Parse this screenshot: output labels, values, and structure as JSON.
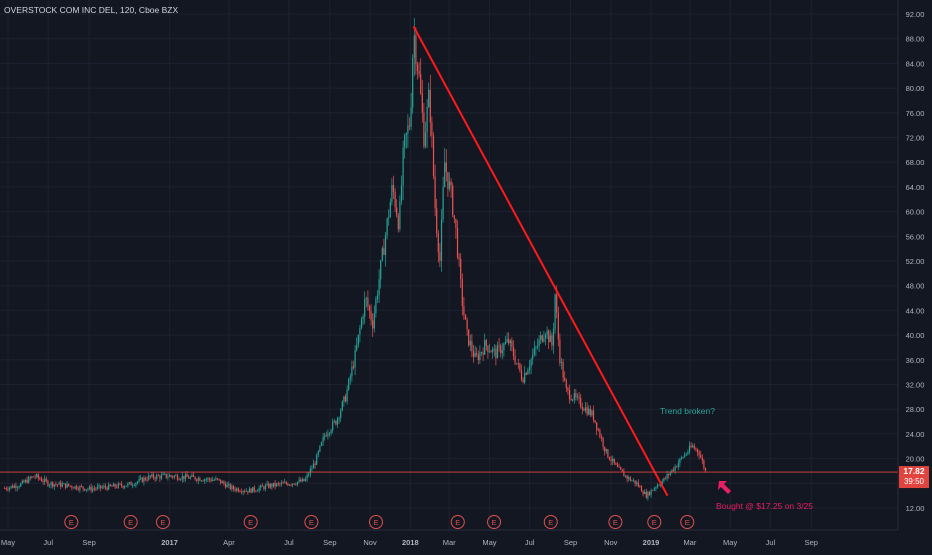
{
  "header": {
    "symbol_line": "OVERSTOCK COM INC DEL, 120, Cboe BZX"
  },
  "colors": {
    "background": "#131722",
    "grid": "#1e2230",
    "up_candle": "#26a69a",
    "down_candle": "#ef5350",
    "axis_text": "#b2b5be",
    "trendline": "#ff1a1a",
    "price_line": "#e0443e",
    "price_tag": "#e0443e",
    "earnings_marker": "#e05050",
    "annotation_teal": "#26a69a",
    "annotation_pink": "#e91e63"
  },
  "annotations": {
    "trend_note": "Trend broken?",
    "bought_note": "Bought @ $17.25 on 3/25",
    "arrow_icon": "arrow-up-left-icon"
  },
  "earnings": {
    "label": "E",
    "dates": [
      "2016-08-05",
      "2016-11-03",
      "2016-12-22",
      "2017-05-04",
      "2017-08-04",
      "2017-11-10",
      "2018-03-14",
      "2018-05-08",
      "2018-08-02",
      "2018-11-08",
      "2019-01-06",
      "2019-02-25"
    ]
  },
  "chart_data": {
    "type": "candlestick",
    "title": "OVERSTOCK COM INC DEL, 120, Cboe BZX",
    "interval": "120",
    "exchange": "Cboe BZX",
    "x_axis": {
      "ticks": [
        {
          "label": "May",
          "date": "2016-05-01",
          "bold": false
        },
        {
          "label": "Jul",
          "date": "2016-07-01",
          "bold": false
        },
        {
          "label": "Sep",
          "date": "2016-09-01",
          "bold": false
        },
        {
          "label": "2017",
          "date": "2017-01-01",
          "bold": true
        },
        {
          "label": "Apr",
          "date": "2017-04-01",
          "bold": false
        },
        {
          "label": "Jul",
          "date": "2017-07-01",
          "bold": false
        },
        {
          "label": "Sep",
          "date": "2017-09-01",
          "bold": false
        },
        {
          "label": "Nov",
          "date": "2017-11-01",
          "bold": false
        },
        {
          "label": "2018",
          "date": "2018-01-01",
          "bold": true
        },
        {
          "label": "Mar",
          "date": "2018-03-01",
          "bold": false
        },
        {
          "label": "May",
          "date": "2018-05-01",
          "bold": false
        },
        {
          "label": "Jul",
          "date": "2018-07-01",
          "bold": false
        },
        {
          "label": "Sep",
          "date": "2018-09-01",
          "bold": false
        },
        {
          "label": "Nov",
          "date": "2018-11-01",
          "bold": false
        },
        {
          "label": "2019",
          "date": "2019-01-01",
          "bold": true
        },
        {
          "label": "Mar",
          "date": "2019-03-01",
          "bold": false
        },
        {
          "label": "May",
          "date": "2019-05-01",
          "bold": false
        },
        {
          "label": "Jul",
          "date": "2019-07-01",
          "bold": false
        },
        {
          "label": "Sep",
          "date": "2019-09-01",
          "bold": false
        }
      ]
    },
    "y_axis": {
      "ylim": [
        8,
        92
      ],
      "ticks": [
        "92.00",
        "88.00",
        "84.00",
        "80.00",
        "76.00",
        "72.00",
        "68.00",
        "64.00",
        "60.00",
        "56.00",
        "52.00",
        "48.00",
        "44.00",
        "40.00",
        "36.00",
        "32.00",
        "28.00",
        "24.00",
        "20.00",
        "16.00",
        "12.00"
      ]
    },
    "price_path": [
      {
        "date": "2016-04-26",
        "price": 15.2
      },
      {
        "date": "2016-05-20",
        "price": 15.8
      },
      {
        "date": "2016-06-10",
        "price": 17.2
      },
      {
        "date": "2016-07-01",
        "price": 16.0
      },
      {
        "date": "2016-08-01",
        "price": 15.6
      },
      {
        "date": "2016-09-01",
        "price": 15.1
      },
      {
        "date": "2016-10-01",
        "price": 15.4
      },
      {
        "date": "2016-11-01",
        "price": 15.8
      },
      {
        "date": "2016-12-01",
        "price": 17.0
      },
      {
        "date": "2017-01-01",
        "price": 17.2
      },
      {
        "date": "2017-02-15",
        "price": 16.8
      },
      {
        "date": "2017-03-15",
        "price": 16.5
      },
      {
        "date": "2017-04-05",
        "price": 15.2
      },
      {
        "date": "2017-05-01",
        "price": 14.8
      },
      {
        "date": "2017-06-01",
        "price": 15.6
      },
      {
        "date": "2017-07-01",
        "price": 16.0
      },
      {
        "date": "2017-07-25",
        "price": 16.4
      },
      {
        "date": "2017-08-10",
        "price": 19.5
      },
      {
        "date": "2017-08-25",
        "price": 24.0
      },
      {
        "date": "2017-09-10",
        "price": 26.0
      },
      {
        "date": "2017-09-25",
        "price": 30.0
      },
      {
        "date": "2017-10-10",
        "price": 37.0
      },
      {
        "date": "2017-10-25",
        "price": 46.0
      },
      {
        "date": "2017-11-05",
        "price": 42.0
      },
      {
        "date": "2017-11-20",
        "price": 53.0
      },
      {
        "date": "2017-12-05",
        "price": 64.0
      },
      {
        "date": "2017-12-15",
        "price": 58.0
      },
      {
        "date": "2017-12-22",
        "price": 70.0
      },
      {
        "date": "2018-01-01",
        "price": 75.0
      },
      {
        "date": "2018-01-06",
        "price": 89.5
      },
      {
        "date": "2018-01-14",
        "price": 82.0
      },
      {
        "date": "2018-01-22",
        "price": 72.0
      },
      {
        "date": "2018-01-30",
        "price": 79.0
      },
      {
        "date": "2018-02-08",
        "price": 60.0
      },
      {
        "date": "2018-02-15",
        "price": 52.0
      },
      {
        "date": "2018-02-22",
        "price": 68.0
      },
      {
        "date": "2018-03-05",
        "price": 62.0
      },
      {
        "date": "2018-03-12",
        "price": 56.0
      },
      {
        "date": "2018-03-20",
        "price": 46.0
      },
      {
        "date": "2018-03-28",
        "price": 40.0
      },
      {
        "date": "2018-04-10",
        "price": 36.0
      },
      {
        "date": "2018-04-25",
        "price": 38.5
      },
      {
        "date": "2018-05-10",
        "price": 37.0
      },
      {
        "date": "2018-05-30",
        "price": 39.0
      },
      {
        "date": "2018-06-20",
        "price": 33.0
      },
      {
        "date": "2018-07-05",
        "price": 36.5
      },
      {
        "date": "2018-07-25",
        "price": 41.0
      },
      {
        "date": "2018-08-05",
        "price": 38.0
      },
      {
        "date": "2018-08-08",
        "price": 47.5
      },
      {
        "date": "2018-08-15",
        "price": 37.0
      },
      {
        "date": "2018-08-25",
        "price": 31.0
      },
      {
        "date": "2018-09-15",
        "price": 29.0
      },
      {
        "date": "2018-10-05",
        "price": 27.0
      },
      {
        "date": "2018-10-25",
        "price": 21.0
      },
      {
        "date": "2018-11-10",
        "price": 18.5
      },
      {
        "date": "2018-11-25",
        "price": 17.0
      },
      {
        "date": "2018-12-10",
        "price": 16.0
      },
      {
        "date": "2018-12-25",
        "price": 14.0
      },
      {
        "date": "2019-01-08",
        "price": 15.5
      },
      {
        "date": "2019-01-20",
        "price": 16.5
      },
      {
        "date": "2019-02-05",
        "price": 18.5
      },
      {
        "date": "2019-02-20",
        "price": 20.5
      },
      {
        "date": "2019-03-05",
        "price": 22.0
      },
      {
        "date": "2019-03-15",
        "price": 21.0
      },
      {
        "date": "2019-03-25",
        "price": 17.82
      }
    ],
    "trendline": {
      "from": {
        "date": "2018-01-06",
        "price": 90.0
      },
      "to": {
        "date": "2019-01-26",
        "price": 14.0
      }
    },
    "last_price": {
      "value": "17.82",
      "countdown": "39:50",
      "price": 17.82
    }
  }
}
